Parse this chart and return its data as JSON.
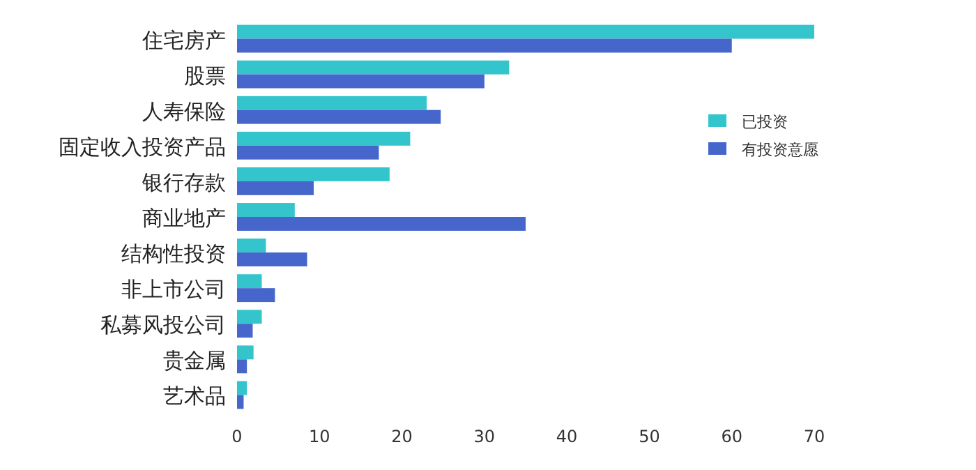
{
  "chart_data": {
    "type": "bar",
    "orientation": "horizontal",
    "categories": [
      "住宅房产",
      "股票",
      "人寿保险",
      "固定收入投资产品",
      "银行存款",
      "商业地产",
      "结构性投资",
      "非上市公司",
      "私募风投公司",
      "贵金属",
      "艺术品"
    ],
    "series": [
      {
        "name": "已投资",
        "color": "#33c4cc",
        "values": [
          70,
          33,
          23,
          21,
          18.5,
          7,
          3.5,
          3,
          3,
          2,
          1.2
        ]
      },
      {
        "name": "有投资意愿",
        "color": "#4766cc",
        "values": [
          60,
          30,
          24.7,
          17.2,
          9.3,
          35,
          8.5,
          4.6,
          1.9,
          1.2,
          0.8
        ]
      }
    ],
    "xlim": [
      0,
      70
    ],
    "xticks": [
      0,
      10,
      20,
      30,
      40,
      50,
      60,
      70
    ],
    "grid": false,
    "legend": "right"
  }
}
